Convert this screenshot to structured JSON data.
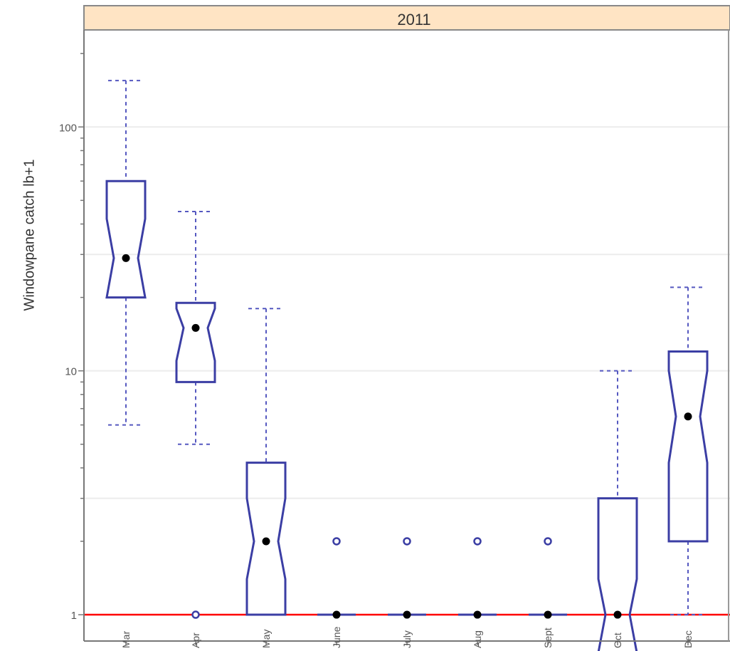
{
  "chart_data": {
    "type": "box",
    "panel_title": "2011",
    "ylabel": "Windowpane catch lb+1",
    "y_scale": "log",
    "ylim": [
      0.78,
      250
    ],
    "y_ticks": [
      {
        "value": 1,
        "label": "1"
      },
      {
        "value": 10,
        "label": "10"
      },
      {
        "value": 100,
        "label": "100"
      }
    ],
    "reference_line": {
      "y": 1,
      "color": "#ff0000"
    },
    "categories": [
      "Mar",
      "Apr",
      "May",
      "June",
      "July",
      "Aug",
      "Sept",
      "Oct",
      "Dec"
    ],
    "boxes": [
      {
        "month": "Mar",
        "whisker_low": 6,
        "q1": 20,
        "median": 29,
        "q3": 60,
        "whisker_high": 155,
        "notch_low": 20,
        "notch_high": 42,
        "outliers": []
      },
      {
        "month": "Apr",
        "whisker_low": 5,
        "q1": 9,
        "median": 15,
        "q3": 19,
        "whisker_high": 45,
        "notch_low": 11,
        "notch_high": 18,
        "outliers": [
          1
        ]
      },
      {
        "month": "May",
        "whisker_low": null,
        "q1": 1,
        "median": 2,
        "q3": 4.2,
        "whisker_high": 18,
        "notch_low": 1.4,
        "notch_high": 3,
        "outliers": []
      },
      {
        "month": "June",
        "whisker_low": null,
        "q1": 1,
        "median": 1,
        "q3": 1,
        "whisker_high": null,
        "notch_low": 1,
        "notch_high": 1,
        "outliers": [
          2
        ]
      },
      {
        "month": "July",
        "whisker_low": null,
        "q1": 1,
        "median": 1,
        "q3": 1,
        "whisker_high": null,
        "notch_low": 1,
        "notch_high": 1,
        "outliers": [
          2
        ]
      },
      {
        "month": "Aug",
        "whisker_low": null,
        "q1": 1,
        "median": 1,
        "q3": 1,
        "whisker_high": null,
        "notch_low": 1,
        "notch_high": 1,
        "outliers": [
          2
        ]
      },
      {
        "month": "Sept",
        "whisker_low": null,
        "q1": 1,
        "median": 1,
        "q3": 1,
        "whisker_high": null,
        "notch_low": 1,
        "notch_high": 1,
        "outliers": [
          2
        ]
      },
      {
        "month": "Oct",
        "whisker_low": null,
        "q1": 0.7,
        "median": 1,
        "q3": 3,
        "whisker_high": 10,
        "notch_low": 0.7,
        "notch_high": 1.4,
        "outliers": []
      },
      {
        "month": "Dec",
        "whisker_low": 1,
        "q1": 2,
        "median": 6.5,
        "q3": 12,
        "whisker_high": 22,
        "notch_low": 4.2,
        "notch_high": 10,
        "outliers": []
      }
    ],
    "colors": {
      "box": "#3b3ea4",
      "whisker": "#5558c0",
      "median_dot": "#000000",
      "strip_fill": "#ffe4c4",
      "grid": "#ececec"
    },
    "grid": true
  }
}
